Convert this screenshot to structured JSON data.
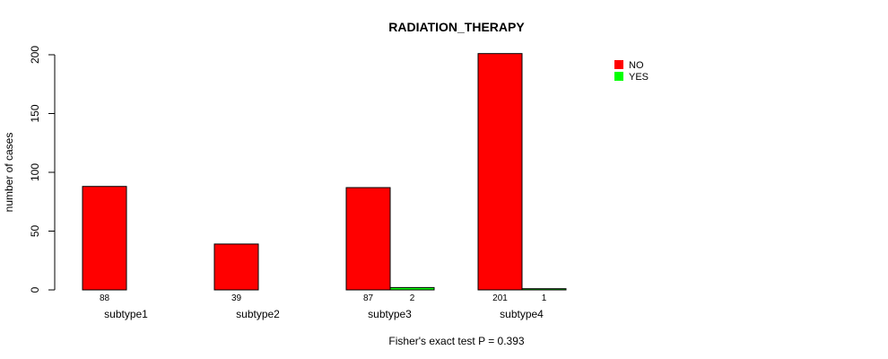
{
  "chart_data": {
    "type": "bar",
    "title": "RADIATION_THERAPY",
    "xlabel": "",
    "ylabel": "number of cases",
    "ylim": [
      0,
      200
    ],
    "yticks": [
      0,
      50,
      100,
      150,
      200
    ],
    "categories": [
      "subtype1",
      "subtype2",
      "subtype3",
      "subtype4"
    ],
    "series": [
      {
        "name": "NO",
        "color": "#ff0000",
        "values": [
          88,
          39,
          87,
          201
        ],
        "labels": [
          "88",
          "39",
          "87",
          "201"
        ]
      },
      {
        "name": "YES",
        "color": "#00ff00",
        "values": [
          0,
          0,
          2,
          1
        ],
        "labels": [
          "",
          "",
          "2",
          "1"
        ]
      }
    ],
    "legend_position": "top-right",
    "grid": false,
    "footnote": "Fisher's exact test P = 0.393"
  }
}
